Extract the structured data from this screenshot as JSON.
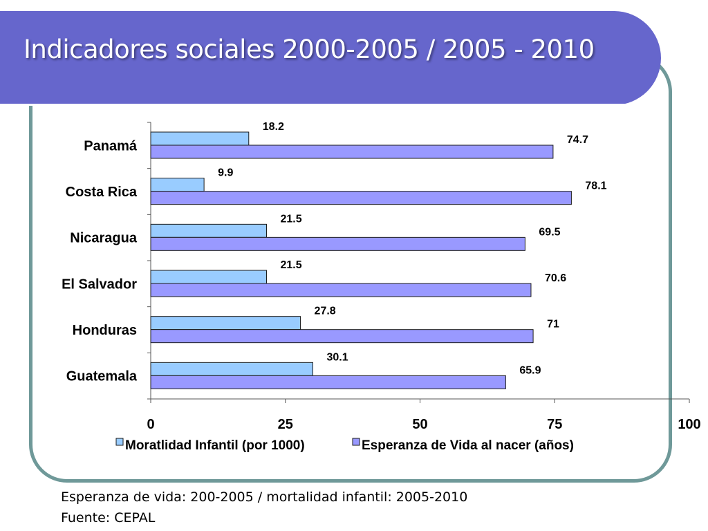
{
  "title": "Indicadores sociales 2000-2005 / 2005 - 2010",
  "colors": {
    "banner": "#6666cc",
    "frame_border": "#6f9999",
    "series_mortalidad": "#99ccff",
    "series_esperanza": "#9999ff"
  },
  "chart_data": {
    "type": "bar",
    "orientation": "horizontal",
    "categories": [
      "Panamá",
      "Costa Rica",
      "Nicaragua",
      "El Salvador",
      "Honduras",
      "Guatemala"
    ],
    "series": [
      {
        "name": "Moratlidad Infantil (por 1000)",
        "values": [
          18.2,
          9.9,
          21.5,
          21.5,
          27.8,
          30.1
        ],
        "labels": [
          "18.2",
          "9.9",
          "21.5",
          "21.5",
          "27.8",
          "30.1"
        ],
        "color": "#99ccff"
      },
      {
        "name": "Esperanza de Vida al nacer (años)",
        "values": [
          74.7,
          78.1,
          69.5,
          70.6,
          71,
          65.9
        ],
        "labels": [
          "74.7",
          "78.1",
          "69.5",
          "70.6",
          "71",
          "65.9"
        ],
        "color": "#9999ff"
      }
    ],
    "xlim": [
      0,
      100
    ],
    "xticks": [
      "0",
      "25",
      "50",
      "75",
      "100"
    ],
    "grid": false,
    "legend": "bottom"
  },
  "footnotes": [
    "Esperanza de vida: 200-2005 / mortalidad infantil: 2005-2010",
    "Fuente: CEPAL"
  ]
}
